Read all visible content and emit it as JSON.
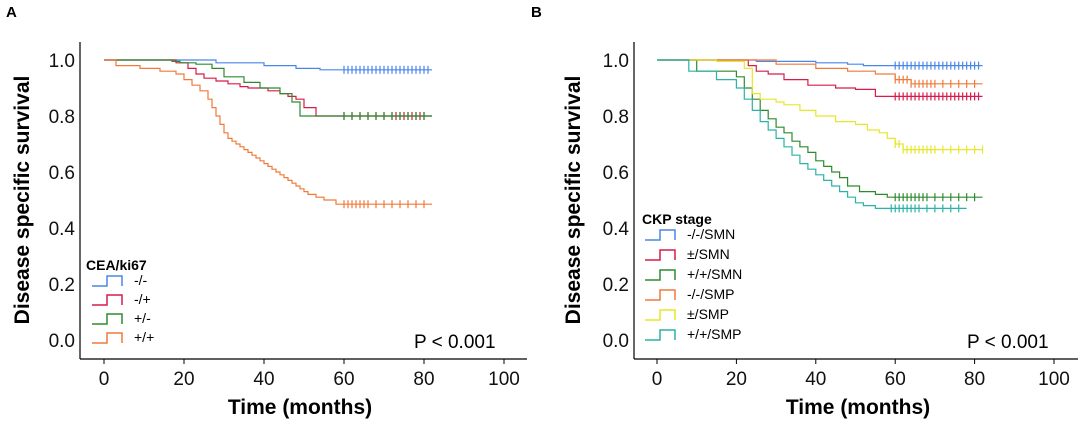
{
  "chart_data": [
    {
      "panel": "A",
      "type": "line",
      "subtype": "kaplan-meier",
      "xlabel": "Time (months)",
      "ylabel": "Disease specific survival",
      "xlim": [
        0,
        100
      ],
      "ylim": [
        0,
        1
      ],
      "xticks": [
        0,
        20,
        40,
        60,
        80,
        100
      ],
      "yticks": [
        0.0,
        0.2,
        0.4,
        0.6,
        0.8,
        1.0
      ],
      "xtick_labels": [
        "0",
        "20",
        "40",
        "60",
        "80",
        "100"
      ],
      "ytick_labels": [
        "0.0",
        "0.2",
        "0.4",
        "0.6",
        "0.8",
        "1.0"
      ],
      "legend_title": "CEA/ki67",
      "legend_position": "bottom-left",
      "annotation": "P < 0.001",
      "series": [
        {
          "name": "-/-",
          "color": "#4a86e8",
          "steps": [
            [
              0,
              1.0
            ],
            [
              28,
              0.99
            ],
            [
              40,
              0.98
            ],
            [
              48,
              0.97
            ],
            [
              54,
              0.965
            ],
            [
              82,
              0.965
            ]
          ],
          "censor": [
            60,
            61,
            62,
            63,
            64,
            65,
            66,
            67,
            68,
            69,
            70,
            71,
            72,
            73,
            74,
            75,
            76,
            77,
            78,
            79,
            80,
            81
          ]
        },
        {
          "name": "-/+",
          "color": "#d81b4a",
          "steps": [
            [
              0,
              1.0
            ],
            [
              18,
              0.99
            ],
            [
              21,
              0.97
            ],
            [
              23,
              0.95
            ],
            [
              25,
              0.935
            ],
            [
              28,
              0.925
            ],
            [
              31,
              0.915
            ],
            [
              34,
              0.905
            ],
            [
              36,
              0.9
            ],
            [
              41,
              0.89
            ],
            [
              44,
              0.88
            ],
            [
              46,
              0.87
            ],
            [
              48,
              0.86
            ],
            [
              50,
              0.83
            ],
            [
              53,
              0.8
            ],
            [
              82,
              0.8
            ]
          ],
          "censor": [
            60,
            62,
            64,
            66,
            68,
            70,
            72,
            73,
            74,
            75,
            76,
            77,
            78,
            79,
            80
          ]
        },
        {
          "name": "+/-",
          "color": "#2f8a2f",
          "steps": [
            [
              0,
              1.0
            ],
            [
              17,
              0.995
            ],
            [
              19,
              0.99
            ],
            [
              23,
              0.985
            ],
            [
              27,
              0.97
            ],
            [
              30,
              0.94
            ],
            [
              35,
              0.92
            ],
            [
              39,
              0.9
            ],
            [
              44,
              0.88
            ],
            [
              47,
              0.85
            ],
            [
              49,
              0.8
            ],
            [
              82,
              0.8
            ]
          ],
          "censor": [
            60,
            62,
            64,
            66,
            68,
            70,
            72,
            74,
            76,
            78,
            80
          ]
        },
        {
          "name": "+/+",
          "color": "#f07a3a",
          "steps": [
            [
              0,
              1.0
            ],
            [
              3,
              0.98
            ],
            [
              9,
              0.97
            ],
            [
              14,
              0.96
            ],
            [
              18,
              0.95
            ],
            [
              20,
              0.93
            ],
            [
              22,
              0.91
            ],
            [
              24,
              0.89
            ],
            [
              26,
              0.86
            ],
            [
              27,
              0.83
            ],
            [
              28,
              0.8
            ],
            [
              29,
              0.77
            ],
            [
              30,
              0.74
            ],
            [
              31,
              0.72
            ],
            [
              32,
              0.71
            ],
            [
              33,
              0.7
            ],
            [
              34,
              0.69
            ],
            [
              35,
              0.68
            ],
            [
              36,
              0.67
            ],
            [
              37,
              0.66
            ],
            [
              38,
              0.65
            ],
            [
              39,
              0.64
            ],
            [
              40,
              0.63
            ],
            [
              41,
              0.62
            ],
            [
              42,
              0.61
            ],
            [
              43,
              0.6
            ],
            [
              44,
              0.59
            ],
            [
              45,
              0.58
            ],
            [
              46,
              0.57
            ],
            [
              47,
              0.56
            ],
            [
              48,
              0.55
            ],
            [
              49,
              0.54
            ],
            [
              50,
              0.53
            ],
            [
              51,
              0.52
            ],
            [
              53,
              0.51
            ],
            [
              55,
              0.5
            ],
            [
              58,
              0.485
            ],
            [
              82,
              0.485
            ]
          ],
          "censor": [
            60,
            61,
            62,
            63,
            64,
            65,
            66,
            68,
            70,
            72,
            74,
            76,
            78,
            80
          ]
        }
      ]
    },
    {
      "panel": "B",
      "type": "line",
      "subtype": "kaplan-meier",
      "xlabel": "Time (months)",
      "ylabel": "Disease specific survival",
      "xlim": [
        0,
        100
      ],
      "ylim": [
        0,
        1
      ],
      "xticks": [
        0,
        20,
        40,
        60,
        80,
        100
      ],
      "yticks": [
        0.0,
        0.2,
        0.4,
        0.6,
        0.8,
        1.0
      ],
      "xtick_labels": [
        "0",
        "20",
        "40",
        "60",
        "80",
        "100"
      ],
      "ytick_labels": [
        "0.0",
        "0.2",
        "0.4",
        "0.6",
        "0.8",
        "1.0"
      ],
      "legend_title": "CKP stage",
      "legend_position": "bottom-left",
      "annotation": "P < 0.001",
      "series": [
        {
          "name": "-/-/SMN",
          "color": "#4a86e8",
          "steps": [
            [
              0,
              1.0
            ],
            [
              25,
              0.995
            ],
            [
              40,
              0.99
            ],
            [
              48,
              0.985
            ],
            [
              52,
              0.98
            ],
            [
              82,
              0.98
            ]
          ],
          "censor": [
            60,
            61,
            62,
            63,
            64,
            65,
            66,
            67,
            68,
            69,
            70,
            71,
            72,
            73,
            74,
            75,
            76,
            77,
            78,
            79,
            80,
            81
          ]
        },
        {
          "name": "±/SMN",
          "color": "#d81b4a",
          "steps": [
            [
              0,
              1.0
            ],
            [
              23,
              0.98
            ],
            [
              25,
              0.96
            ],
            [
              28,
              0.95
            ],
            [
              32,
              0.93
            ],
            [
              38,
              0.91
            ],
            [
              45,
              0.9
            ],
            [
              50,
              0.895
            ],
            [
              55,
              0.87
            ],
            [
              82,
              0.87
            ]
          ],
          "censor": [
            60,
            61,
            62,
            63,
            64,
            65,
            66,
            67,
            68,
            69,
            70,
            71,
            72,
            73,
            74,
            75,
            76,
            77,
            78,
            79,
            80,
            81
          ]
        },
        {
          "name": "+/+/SMN",
          "color": "#2f8a2f",
          "steps": [
            [
              0,
              1.0
            ],
            [
              10,
              0.96
            ],
            [
              20,
              0.94
            ],
            [
              22,
              0.9
            ],
            [
              24,
              0.86
            ],
            [
              26,
              0.82
            ],
            [
              28,
              0.79
            ],
            [
              30,
              0.76
            ],
            [
              32,
              0.74
            ],
            [
              34,
              0.71
            ],
            [
              36,
              0.69
            ],
            [
              38,
              0.67
            ],
            [
              40,
              0.64
            ],
            [
              42,
              0.62
            ],
            [
              44,
              0.6
            ],
            [
              46,
              0.58
            ],
            [
              48,
              0.55
            ],
            [
              51,
              0.53
            ],
            [
              55,
              0.52
            ],
            [
              58,
              0.51
            ],
            [
              82,
              0.51
            ]
          ],
          "censor": [
            60,
            61,
            62,
            63,
            64,
            65,
            66,
            67,
            68,
            70,
            72,
            74,
            76,
            78,
            80
          ]
        },
        {
          "name": "-/-/SMP",
          "color": "#f07a3a",
          "steps": [
            [
              0,
              1.0
            ],
            [
              30,
              0.985
            ],
            [
              40,
              0.97
            ],
            [
              48,
              0.96
            ],
            [
              55,
              0.95
            ],
            [
              60,
              0.93
            ],
            [
              64,
              0.915
            ],
            [
              82,
              0.915
            ]
          ],
          "censor": [
            60,
            61,
            62,
            63,
            64,
            65,
            66,
            67,
            68,
            69,
            70,
            72,
            74,
            76,
            78,
            80
          ]
        },
        {
          "name": "±/SMP",
          "color": "#e6e62a",
          "steps": [
            [
              0,
              1.0
            ],
            [
              15,
              0.995
            ],
            [
              22,
              0.97
            ],
            [
              24,
              0.88
            ],
            [
              26,
              0.86
            ],
            [
              30,
              0.85
            ],
            [
              32,
              0.84
            ],
            [
              36,
              0.82
            ],
            [
              40,
              0.8
            ],
            [
              45,
              0.78
            ],
            [
              50,
              0.77
            ],
            [
              53,
              0.75
            ],
            [
              56,
              0.74
            ],
            [
              58,
              0.72
            ],
            [
              60,
              0.7
            ],
            [
              62,
              0.68
            ],
            [
              82,
              0.68
            ]
          ],
          "censor": [
            60,
            61,
            62,
            63,
            64,
            65,
            66,
            67,
            68,
            69,
            70,
            72,
            74,
            76,
            78,
            80,
            82
          ]
        },
        {
          "name": "+/+/SMP",
          "color": "#2ab3a6",
          "steps": [
            [
              0,
              1.0
            ],
            [
              8,
              0.96
            ],
            [
              15,
              0.93
            ],
            [
              20,
              0.9
            ],
            [
              22,
              0.86
            ],
            [
              24,
              0.82
            ],
            [
              26,
              0.78
            ],
            [
              28,
              0.75
            ],
            [
              30,
              0.72
            ],
            [
              32,
              0.69
            ],
            [
              34,
              0.66
            ],
            [
              36,
              0.63
            ],
            [
              38,
              0.61
            ],
            [
              40,
              0.59
            ],
            [
              42,
              0.57
            ],
            [
              44,
              0.55
            ],
            [
              46,
              0.53
            ],
            [
              48,
              0.51
            ],
            [
              50,
              0.49
            ],
            [
              52,
              0.48
            ],
            [
              55,
              0.47
            ],
            [
              78,
              0.47
            ]
          ],
          "censor": [
            59,
            60,
            61,
            62,
            63,
            64,
            65,
            66,
            68,
            70,
            72,
            74,
            76
          ]
        }
      ]
    }
  ]
}
